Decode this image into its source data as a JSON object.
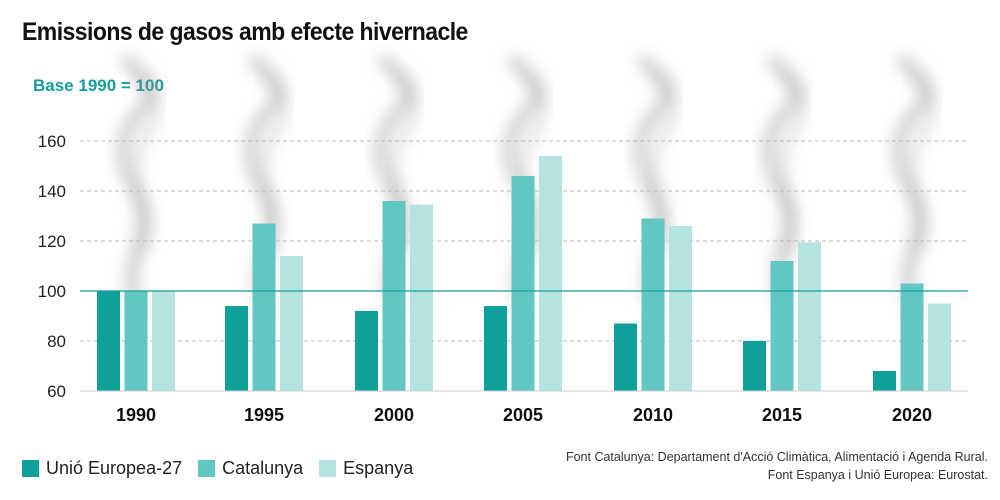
{
  "title": "Emissions de gasos amb efecte hivernacle",
  "subtitle": "Base 1990 = 100",
  "sources": [
    "Font Catalunya: Departament d'Acció Climàtica, Alimentació i Agenda Rural.",
    "Font Espanya i Unió Europea: Eurostat."
  ],
  "colors": {
    "ue27": "#0fa09b",
    "catalunya": "#62c7c3",
    "espanya": "#b4e3e1",
    "reference_line": "#139e9b",
    "grid": "#bbbbbb"
  },
  "chart_data": {
    "type": "bar",
    "categories": [
      "1990",
      "1995",
      "2000",
      "2005",
      "2010",
      "2015",
      "2020"
    ],
    "series": [
      {
        "name": "Unió Europea-27",
        "values": [
          100,
          94,
          92,
          94,
          87,
          80,
          68
        ]
      },
      {
        "name": "Catalunya",
        "values": [
          100,
          127,
          136,
          146,
          129,
          112,
          103
        ]
      },
      {
        "name": "Espanya",
        "values": [
          100,
          114,
          134.5,
          154,
          126,
          119.5,
          95
        ]
      }
    ],
    "ylim": [
      60,
      170
    ],
    "yticks": [
      "60",
      "80",
      "100",
      "120",
      "140",
      "160"
    ],
    "reference_value": 100,
    "grid": true,
    "legend_position": "bottom-left"
  }
}
